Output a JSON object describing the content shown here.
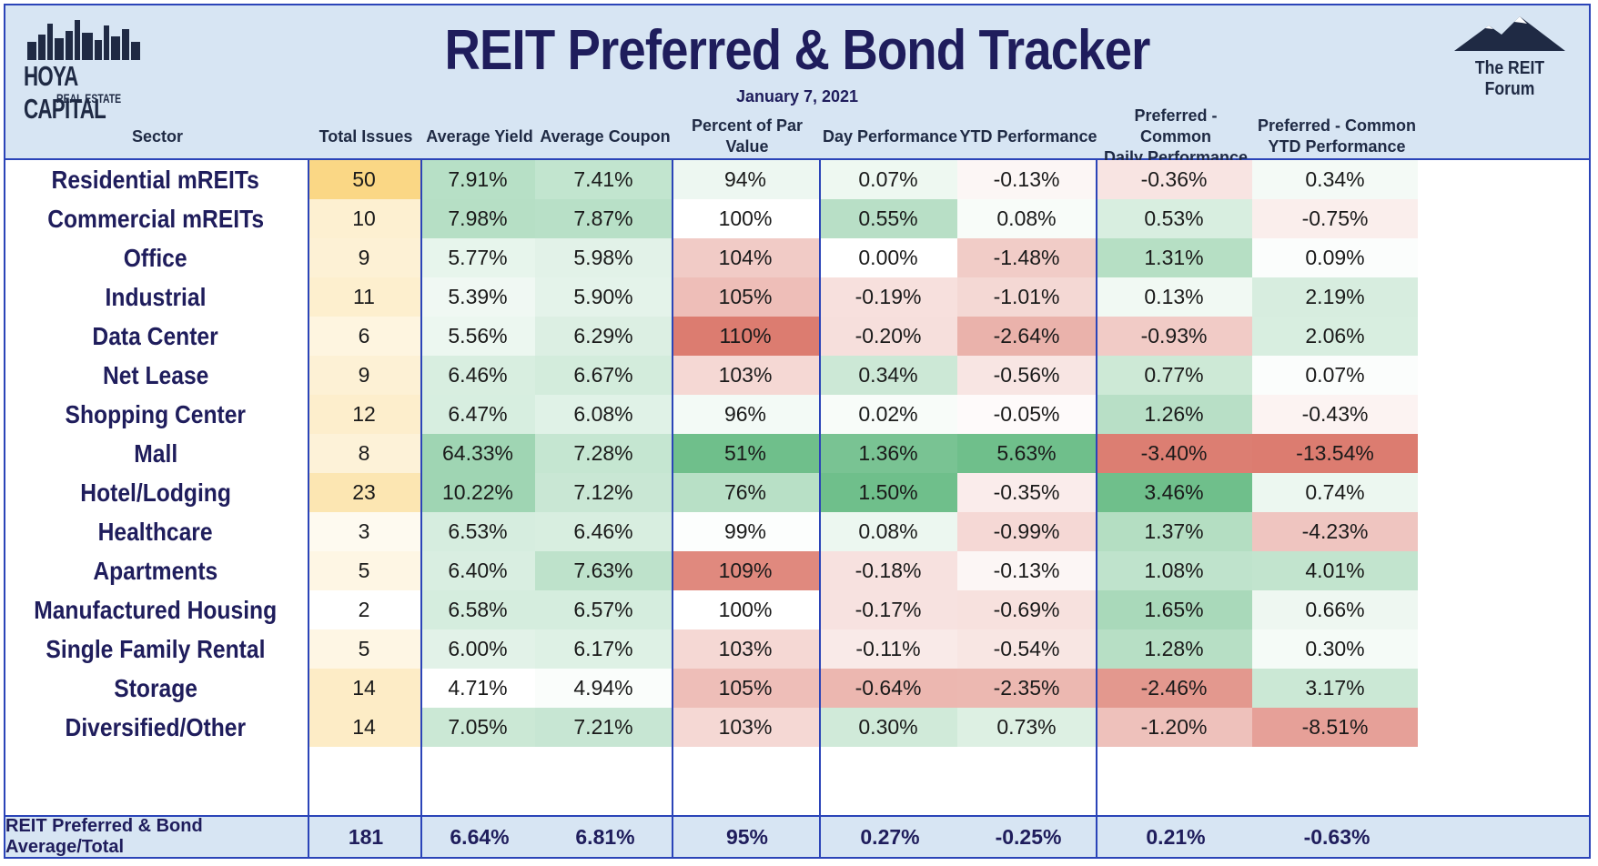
{
  "header": {
    "title": "REIT Preferred & Bond Tracker",
    "date": "January 7, 2021",
    "logo_left_line1": "HOYA CAPITAL",
    "logo_left_line2": "REAL ESTATE",
    "logo_right_text": "The REIT Forum"
  },
  "columns": {
    "sector": "Sector",
    "total_issues": "Total Issues",
    "average_yield": "Average Yield",
    "average_coupon": "Average Coupon",
    "percent_of_par": "Percent of Par Value",
    "day_performance": "Day Performance",
    "ytd_performance": "YTD Performance",
    "pref_common_daily_1": "Preferred - Common",
    "pref_common_daily_2": "Daily Performance",
    "pref_common_ytd_1": "Preferred - Common",
    "pref_common_ytd_2": "YTD Performance"
  },
  "chart_data": {
    "type": "table",
    "title": "REIT Preferred & Bond Tracker",
    "rows": [
      {
        "sector": "Residential mREITs",
        "total_issues": "50",
        "average_yield": "7.91%",
        "average_coupon": "7.41%",
        "percent_of_par": "94%",
        "day_performance": "0.07%",
        "ytd_performance": "-0.13%",
        "pref_common_daily": "-0.36%",
        "pref_common_ytd": "0.34%"
      },
      {
        "sector": "Commercial mREITs",
        "total_issues": "10",
        "average_yield": "7.98%",
        "average_coupon": "7.87%",
        "percent_of_par": "100%",
        "day_performance": "0.55%",
        "ytd_performance": "0.08%",
        "pref_common_daily": "0.53%",
        "pref_common_ytd": "-0.75%"
      },
      {
        "sector": "Office",
        "total_issues": "9",
        "average_yield": "5.77%",
        "average_coupon": "5.98%",
        "percent_of_par": "104%",
        "day_performance": "0.00%",
        "ytd_performance": "-1.48%",
        "pref_common_daily": "1.31%",
        "pref_common_ytd": "0.09%"
      },
      {
        "sector": "Industrial",
        "total_issues": "11",
        "average_yield": "5.39%",
        "average_coupon": "5.90%",
        "percent_of_par": "105%",
        "day_performance": "-0.19%",
        "ytd_performance": "-1.01%",
        "pref_common_daily": "0.13%",
        "pref_common_ytd": "2.19%"
      },
      {
        "sector": "Data Center",
        "total_issues": "6",
        "average_yield": "5.56%",
        "average_coupon": "6.29%",
        "percent_of_par": "110%",
        "day_performance": "-0.20%",
        "ytd_performance": "-2.64%",
        "pref_common_daily": "-0.93%",
        "pref_common_ytd": "2.06%"
      },
      {
        "sector": "Net Lease",
        "total_issues": "9",
        "average_yield": "6.46%",
        "average_coupon": "6.67%",
        "percent_of_par": "103%",
        "day_performance": "0.34%",
        "ytd_performance": "-0.56%",
        "pref_common_daily": "0.77%",
        "pref_common_ytd": "0.07%"
      },
      {
        "sector": "Shopping Center",
        "total_issues": "12",
        "average_yield": "6.47%",
        "average_coupon": "6.08%",
        "percent_of_par": "96%",
        "day_performance": "0.02%",
        "ytd_performance": "-0.05%",
        "pref_common_daily": "1.26%",
        "pref_common_ytd": "-0.43%"
      },
      {
        "sector": "Mall",
        "total_issues": "8",
        "average_yield": "64.33%",
        "average_coupon": "7.28%",
        "percent_of_par": "51%",
        "day_performance": "1.36%",
        "ytd_performance": "5.63%",
        "pref_common_daily": "-3.40%",
        "pref_common_ytd": "-13.54%"
      },
      {
        "sector": "Hotel/Lodging",
        "total_issues": "23",
        "average_yield": "10.22%",
        "average_coupon": "7.12%",
        "percent_of_par": "76%",
        "day_performance": "1.50%",
        "ytd_performance": "-0.35%",
        "pref_common_daily": "3.46%",
        "pref_common_ytd": "0.74%"
      },
      {
        "sector": "Healthcare",
        "total_issues": "3",
        "average_yield": "6.53%",
        "average_coupon": "6.46%",
        "percent_of_par": "99%",
        "day_performance": "0.08%",
        "ytd_performance": "-0.99%",
        "pref_common_daily": "1.37%",
        "pref_common_ytd": "-4.23%"
      },
      {
        "sector": "Apartments",
        "total_issues": "5",
        "average_yield": "6.40%",
        "average_coupon": "7.63%",
        "percent_of_par": "109%",
        "day_performance": "-0.18%",
        "ytd_performance": "-0.13%",
        "pref_common_daily": "1.08%",
        "pref_common_ytd": "4.01%"
      },
      {
        "sector": "Manufactured Housing",
        "total_issues": "2",
        "average_yield": "6.58%",
        "average_coupon": "6.57%",
        "percent_of_par": "100%",
        "day_performance": "-0.17%",
        "ytd_performance": "-0.69%",
        "pref_common_daily": "1.65%",
        "pref_common_ytd": "0.66%"
      },
      {
        "sector": "Single Family Rental",
        "total_issues": "5",
        "average_yield": "6.00%",
        "average_coupon": "6.17%",
        "percent_of_par": "103%",
        "day_performance": "-0.11%",
        "ytd_performance": "-0.54%",
        "pref_common_daily": "1.28%",
        "pref_common_ytd": "0.30%"
      },
      {
        "sector": "Storage",
        "total_issues": "14",
        "average_yield": "4.71%",
        "average_coupon": "4.94%",
        "percent_of_par": "105%",
        "day_performance": "-0.64%",
        "ytd_performance": "-2.35%",
        "pref_common_daily": "-2.46%",
        "pref_common_ytd": "3.17%"
      },
      {
        "sector": "Diversified/Other",
        "total_issues": "14",
        "average_yield": "7.05%",
        "average_coupon": "7.21%",
        "percent_of_par": "103%",
        "day_performance": "0.30%",
        "ytd_performance": "0.73%",
        "pref_common_daily": "-1.20%",
        "pref_common_ytd": "-8.51%"
      }
    ],
    "total": {
      "sector": "REIT Preferred & Bond Average/Total",
      "total_issues": "181",
      "average_yield": "6.64%",
      "average_coupon": "6.81%",
      "percent_of_par": "95%",
      "day_performance": "0.27%",
      "ytd_performance": "-0.25%",
      "pref_common_daily": "0.21%",
      "pref_common_ytd": "-0.63%"
    }
  },
  "colors": {
    "header_bg": "#d7e5f3",
    "border": "#2b44b8",
    "title": "#1f1d5c",
    "positive_green": "#63be7b",
    "negative_red": "#f8696b",
    "issues_yellow": "#ffd966"
  }
}
